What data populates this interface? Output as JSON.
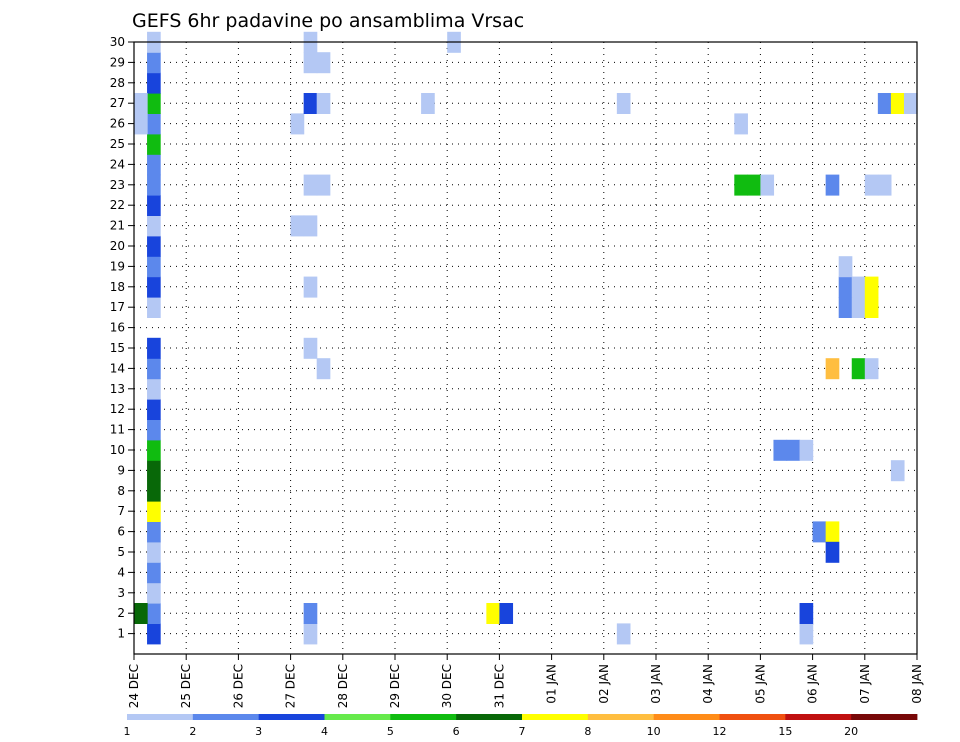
{
  "title": "GEFS 6hr padavine po ansamblima Vrsac",
  "chart_data": {
    "type": "heatmap",
    "title": "GEFS 6hr padavine po ansamblima Vrsac",
    "x_ticks": [
      "24 DEC",
      "25 DEC",
      "26 DEC",
      "27 DEC",
      "28 DEC",
      "29 DEC",
      "30 DEC",
      "31 DEC",
      "01 JAN",
      "02 JAN",
      "03 JAN",
      "04 JAN",
      "05 JAN",
      "06 JAN",
      "07 JAN",
      "08 JAN"
    ],
    "y_ticks": [
      "1",
      "2",
      "3",
      "4",
      "5",
      "6",
      "7",
      "8",
      "9",
      "10",
      "11",
      "12",
      "13",
      "14",
      "15",
      "16",
      "17",
      "18",
      "19",
      "20",
      "21",
      "22",
      "23",
      "24",
      "25",
      "26",
      "27",
      "28",
      "29",
      "30"
    ],
    "x_range_days": [
      0,
      15
    ],
    "y_range": [
      0,
      30
    ],
    "grid": "dotted",
    "legend": "colorbar-bottom",
    "colorbar": {
      "labels": [
        "1",
        "2",
        "3",
        "4",
        "5",
        "6",
        "7",
        "8",
        "10",
        "12",
        "15",
        "20"
      ],
      "colors": [
        "#b4c8f4",
        "#5c88ec",
        "#1844dc",
        "#66ea4c",
        "#10bc10",
        "#086808",
        "#ffff00",
        "#ffbe40",
        "#ff8c18",
        "#f05010",
        "#c01010",
        "#780808"
      ]
    },
    "cells": [
      {
        "member": 1,
        "x": 0.25,
        "v": 3
      },
      {
        "member": 2,
        "x": 0.25,
        "v": 2
      },
      {
        "member": 3,
        "x": 0.25,
        "v": 1
      },
      {
        "member": 4,
        "x": 0.25,
        "v": 2
      },
      {
        "member": 5,
        "x": 0.25,
        "v": 1
      },
      {
        "member": 6,
        "x": 0.25,
        "v": 2
      },
      {
        "member": 7,
        "x": 0.25,
        "v": 7
      },
      {
        "member": 8,
        "x": 0.25,
        "v": 6
      },
      {
        "member": 9,
        "x": 0.25,
        "v": 6
      },
      {
        "member": 10,
        "x": 0.25,
        "v": 5
      },
      {
        "member": 11,
        "x": 0.25,
        "v": 2
      },
      {
        "member": 12,
        "x": 0.25,
        "v": 3
      },
      {
        "member": 13,
        "x": 0.25,
        "v": 1
      },
      {
        "member": 14,
        "x": 0.25,
        "v": 2
      },
      {
        "member": 15,
        "x": 0.25,
        "v": 3
      },
      {
        "member": 17,
        "x": 0.25,
        "v": 1
      },
      {
        "member": 18,
        "x": 0.25,
        "v": 3
      },
      {
        "member": 19,
        "x": 0.25,
        "v": 2
      },
      {
        "member": 20,
        "x": 0.25,
        "v": 3
      },
      {
        "member": 21,
        "x": 0.25,
        "v": 1
      },
      {
        "member": 22,
        "x": 0.25,
        "v": 3
      },
      {
        "member": 23,
        "x": 0.25,
        "v": 2
      },
      {
        "member": 24,
        "x": 0.25,
        "v": 2
      },
      {
        "member": 25,
        "x": 0.25,
        "v": 5
      },
      {
        "member": 26,
        "x": 0.25,
        "v": 2
      },
      {
        "member": 27,
        "x": 0.25,
        "v": 5
      },
      {
        "member": 28,
        "x": 0.25,
        "v": 3
      },
      {
        "member": 29,
        "x": 0.25,
        "v": 2
      },
      {
        "member": 30,
        "x": 0.25,
        "v": 1
      },
      {
        "member": 2,
        "x": 0,
        "v": 6
      },
      {
        "member": 26,
        "x": 0,
        "v": 1
      },
      {
        "member": 27,
        "x": 0,
        "v": 1
      },
      {
        "member": 1,
        "x": 3.25,
        "v": 1
      },
      {
        "member": 2,
        "x": 3.25,
        "v": 2
      },
      {
        "member": 15,
        "x": 3.25,
        "v": 1
      },
      {
        "member": 18,
        "x": 3.25,
        "v": 1
      },
      {
        "member": 21,
        "x": 3,
        "v": 1
      },
      {
        "member": 21,
        "x": 3.25,
        "v": 1
      },
      {
        "member": 23,
        "x": 3.25,
        "v": 1
      },
      {
        "member": 23,
        "x": 3.5,
        "v": 1
      },
      {
        "member": 26,
        "x": 3,
        "v": 1
      },
      {
        "member": 27,
        "x": 3.25,
        "v": 3
      },
      {
        "member": 27,
        "x": 3.5,
        "v": 1
      },
      {
        "member": 29,
        "x": 3.25,
        "v": 1
      },
      {
        "member": 29,
        "x": 3.5,
        "v": 1
      },
      {
        "member": 30,
        "x": 3.25,
        "v": 1
      },
      {
        "member": 14,
        "x": 3.5,
        "v": 1
      },
      {
        "member": 27,
        "x": 5.5,
        "v": 1
      },
      {
        "member": 30,
        "x": 6,
        "v": 1
      },
      {
        "member": 2,
        "x": 6.75,
        "v": 7
      },
      {
        "member": 2,
        "x": 7,
        "v": 3
      },
      {
        "member": 1,
        "x": 9.25,
        "v": 1
      },
      {
        "member": 27,
        "x": 9.25,
        "v": 1
      },
      {
        "member": 23,
        "x": 11.5,
        "v": 5
      },
      {
        "member": 23,
        "x": 11.75,
        "v": 5
      },
      {
        "member": 23,
        "x": 12,
        "v": 1
      },
      {
        "member": 26,
        "x": 11.5,
        "v": 1
      },
      {
        "member": 10,
        "x": 12.25,
        "v": 2
      },
      {
        "member": 10,
        "x": 12.5,
        "v": 2
      },
      {
        "member": 10,
        "x": 12.75,
        "v": 1
      },
      {
        "member": 1,
        "x": 12.75,
        "v": 1
      },
      {
        "member": 2,
        "x": 12.75,
        "v": 3
      },
      {
        "member": 6,
        "x": 13,
        "v": 2
      },
      {
        "member": 6,
        "x": 13.25,
        "v": 7
      },
      {
        "member": 5,
        "x": 13.25,
        "v": 3
      },
      {
        "member": 14,
        "x": 13.25,
        "v": 8
      },
      {
        "member": 14,
        "x": 13.75,
        "v": 5
      },
      {
        "member": 14,
        "x": 14,
        "v": 1
      },
      {
        "member": 17,
        "x": 13.5,
        "v": 2
      },
      {
        "member": 17,
        "x": 13.75,
        "v": 1
      },
      {
        "member": 17,
        "x": 14,
        "v": 7
      },
      {
        "member": 18,
        "x": 13.5,
        "v": 2
      },
      {
        "member": 18,
        "x": 13.75,
        "v": 1
      },
      {
        "member": 18,
        "x": 14,
        "v": 7
      },
      {
        "member": 19,
        "x": 13.5,
        "v": 1
      },
      {
        "member": 23,
        "x": 13.25,
        "v": 2
      },
      {
        "member": 23,
        "x": 14,
        "v": 1
      },
      {
        "member": 23,
        "x": 14.25,
        "v": 1
      },
      {
        "member": 9,
        "x": 14.5,
        "v": 1
      },
      {
        "member": 27,
        "x": 14.25,
        "v": 2
      },
      {
        "member": 27,
        "x": 14.5,
        "v": 7
      },
      {
        "member": 27,
        "x": 14.75,
        "v": 1
      }
    ]
  }
}
